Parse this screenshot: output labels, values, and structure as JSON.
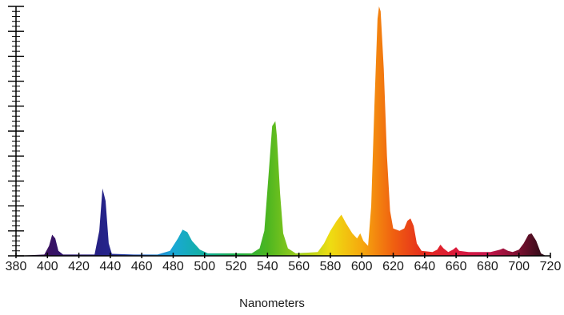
{
  "chart_data": {
    "type": "area",
    "title": "",
    "xlabel": "Nanometers",
    "ylabel": "",
    "xlim": [
      380,
      720
    ],
    "ylim": [
      0,
      100
    ],
    "x_ticks": [
      380,
      400,
      420,
      440,
      460,
      480,
      500,
      520,
      540,
      560,
      580,
      600,
      620,
      640,
      660,
      680,
      700,
      720
    ],
    "y_axis_tick_labels_shown": false,
    "grid": false,
    "fill": "visible-spectrum gradient under curve",
    "series": [
      {
        "points": [
          [
            380,
            0
          ],
          [
            398,
            0.5
          ],
          [
            401,
            4
          ],
          [
            403,
            8.5
          ],
          [
            405,
            7
          ],
          [
            407,
            2
          ],
          [
            410,
            0.5
          ],
          [
            430,
            0.5
          ],
          [
            433,
            10
          ],
          [
            435,
            27
          ],
          [
            437,
            22
          ],
          [
            439,
            5
          ],
          [
            441,
            0.8
          ],
          [
            455,
            0.5
          ],
          [
            470,
            0.5
          ],
          [
            478,
            2
          ],
          [
            483,
            7
          ],
          [
            486,
            10.5
          ],
          [
            489,
            9.5
          ],
          [
            492,
            6
          ],
          [
            497,
            2.5
          ],
          [
            502,
            1
          ],
          [
            530,
            1
          ],
          [
            535,
            3
          ],
          [
            538,
            10
          ],
          [
            541,
            35
          ],
          [
            543,
            52
          ],
          [
            545,
            54
          ],
          [
            546,
            48
          ],
          [
            548,
            25
          ],
          [
            550,
            9
          ],
          [
            553,
            3
          ],
          [
            558,
            1
          ],
          [
            572,
            1.5
          ],
          [
            576,
            5
          ],
          [
            580,
            10
          ],
          [
            584,
            14
          ],
          [
            587,
            16.5
          ],
          [
            590,
            13
          ],
          [
            594,
            9
          ],
          [
            597,
            7
          ],
          [
            599,
            9
          ],
          [
            601,
            6
          ],
          [
            604,
            4
          ],
          [
            606,
            20
          ],
          [
            608,
            60
          ],
          [
            610,
            95
          ],
          [
            611,
            100
          ],
          [
            612,
            98
          ],
          [
            614,
            75
          ],
          [
            616,
            40
          ],
          [
            618,
            18
          ],
          [
            620,
            11
          ],
          [
            624,
            10
          ],
          [
            627,
            11
          ],
          [
            629,
            14
          ],
          [
            631,
            15
          ],
          [
            633,
            12
          ],
          [
            635,
            5
          ],
          [
            638,
            2
          ],
          [
            645,
            1.5
          ],
          [
            648,
            2.5
          ],
          [
            650,
            4.5
          ],
          [
            652,
            3
          ],
          [
            655,
            1.5
          ],
          [
            658,
            2.5
          ],
          [
            660,
            3.5
          ],
          [
            662,
            2
          ],
          [
            668,
            1.5
          ],
          [
            675,
            1.5
          ],
          [
            682,
            1.5
          ],
          [
            688,
            2.5
          ],
          [
            690,
            3
          ],
          [
            693,
            2
          ],
          [
            696,
            1.5
          ],
          [
            700,
            2.5
          ],
          [
            703,
            5
          ],
          [
            706,
            8.5
          ],
          [
            708,
            9
          ],
          [
            711,
            6
          ],
          [
            714,
            1
          ],
          [
            717,
            0
          ],
          [
            720,
            0
          ]
        ]
      }
    ]
  }
}
